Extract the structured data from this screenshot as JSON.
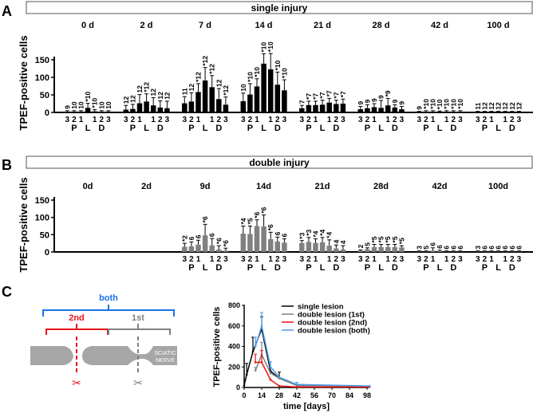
{
  "panels": {
    "A": {
      "label": "A",
      "title": "single injury"
    },
    "B": {
      "label": "B",
      "title": "double injury"
    },
    "C": {
      "label": "C"
    }
  },
  "ylabel": "TPEF-positive cells",
  "segment_numbers": [
    "3",
    "2",
    "1",
    "",
    "1",
    "2",
    "3"
  ],
  "segment_letters": {
    "P": "P",
    "L": "L",
    "D": "D"
  },
  "diagram": {
    "both": "both",
    "second": "2nd",
    "first": "1st",
    "nerve_line1": "SCIATIC",
    "nerve_line2": "NERVE",
    "colors": {
      "both": "#1a73e8",
      "second": "#e8141b",
      "first": "#808080",
      "nerve": "#a6a6a6"
    }
  },
  "chart_data": [
    {
      "type": "bar",
      "title": "single injury",
      "ylabel": "TPEF-positive cells",
      "ylim": [
        0,
        150
      ],
      "yticks": [
        0,
        50,
        100,
        150
      ],
      "color": "#000000",
      "groups": [
        {
          "day": "0 d",
          "values": [
            2,
            2,
            2,
            13,
            3,
            2,
            2
          ],
          "err_top": [
            5,
            5,
            5,
            26,
            8,
            5,
            5
          ],
          "n": [
            "9",
            "10",
            "10",
            "*10",
            "*10",
            "10",
            "10"
          ]
        },
        {
          "day": "2 d",
          "values": [
            8,
            10,
            26,
            31,
            20,
            14,
            12
          ],
          "err_top": [
            20,
            23,
            51,
            53,
            42,
            33,
            32
          ],
          "n": [
            "12",
            "12",
            "12",
            "*12",
            "12",
            "12",
            "12"
          ]
        },
        {
          "day": "7 d",
          "values": [
            26,
            31,
            58,
            91,
            72,
            38,
            22
          ],
          "err_top": [
            45,
            56,
            82,
            128,
            105,
            68,
            44
          ],
          "n": [
            "11",
            "12",
            "*12",
            "*12",
            "*12",
            "12",
            "*12"
          ]
        },
        {
          "day": "14 d",
          "values": [
            32,
            51,
            74,
            139,
            123,
            79,
            63
          ],
          "err_top": [
            55,
            82,
            96,
            167,
            168,
            115,
            93
          ],
          "n": [
            "10",
            "*10",
            "*10",
            "*10",
            "*10",
            "*10",
            "*10"
          ]
        },
        {
          "day": "21 d",
          "values": [
            12,
            21,
            21,
            22,
            28,
            24,
            25
          ],
          "err_top": [
            20,
            32,
            32,
            35,
            40,
            35,
            38
          ],
          "n": [
            "7",
            "*7",
            "*7",
            "*7",
            "*7",
            "*7",
            "*7"
          ]
        },
        {
          "day": "28 d",
          "values": [
            9,
            12,
            15,
            13,
            20,
            14,
            9
          ],
          "err_top": [
            17,
            22,
            25,
            34,
            40,
            22,
            17
          ],
          "n": [
            "9",
            "9",
            "9",
            "9",
            "*9",
            "9",
            "9"
          ]
        },
        {
          "day": "42 d",
          "values": [
            1,
            2,
            2,
            1,
            2,
            2,
            2
          ],
          "err_top": [
            3,
            5,
            5,
            4,
            5,
            5,
            5
          ],
          "n": [
            "9",
            "*10",
            "*10",
            "*10",
            "*10",
            "*10",
            "*10"
          ]
        },
        {
          "day": "100 d",
          "values": [
            1,
            1,
            1,
            1,
            1,
            1,
            1
          ],
          "err_top": [
            3,
            3,
            3,
            3,
            3,
            3,
            3
          ],
          "n": [
            "11",
            "12",
            "12",
            "12",
            "12",
            "12",
            "12"
          ]
        }
      ]
    },
    {
      "type": "bar",
      "title": "double injury",
      "ylabel": "TPEF-positive cells",
      "ylim": [
        0,
        150
      ],
      "yticks": [
        0,
        50,
        100,
        150
      ],
      "color": "#808080",
      "groups": [
        {
          "day": "0d",
          "values": [],
          "err_top": [],
          "n": []
        },
        {
          "day": "2d",
          "values": [],
          "err_top": [],
          "n": []
        },
        {
          "day": "9d",
          "values": [
            15,
            16,
            21,
            48,
            19,
            7,
            4
          ],
          "err_top": [
            25,
            29,
            34,
            80,
            39,
            18,
            11
          ],
          "n": [
            "*2",
            "6",
            "6",
            "*6",
            "6",
            "*6",
            "*6"
          ]
        },
        {
          "day": "14d",
          "values": [
            53,
            52,
            75,
            74,
            37,
            30,
            27
          ],
          "err_top": [
            75,
            75,
            93,
            107,
            57,
            43,
            38
          ],
          "n": [
            "*4",
            "*5",
            "*6",
            "*6",
            "*6",
            "6",
            "6"
          ]
        },
        {
          "day": "21d",
          "values": [
            26,
            29,
            26,
            28,
            18,
            10,
            7
          ],
          "err_top": [
            33,
            42,
            38,
            42,
            35,
            20,
            18
          ],
          "n": [
            "*3",
            "*3",
            "*4",
            "*4",
            "*4",
            "4",
            "4"
          ]
        },
        {
          "day": "28d",
          "values": [
            4,
            8,
            14,
            14,
            14,
            14,
            13
          ],
          "err_top": [
            6,
            12,
            22,
            22,
            22,
            22,
            18
          ],
          "n": [
            "2",
            "5",
            "*5",
            "*5",
            "*5",
            "*5",
            "*5"
          ]
        },
        {
          "day": "42d",
          "values": [
            1,
            1,
            4,
            2,
            1,
            1,
            1
          ],
          "err_top": [
            3,
            3,
            12,
            5,
            3,
            3,
            3
          ],
          "n": [
            "3",
            "5",
            "6",
            "6",
            "6",
            "6",
            "6"
          ]
        },
        {
          "day": "100d",
          "values": [
            1,
            1,
            1,
            1,
            1,
            1,
            1
          ],
          "err_top": [
            3,
            3,
            3,
            3,
            3,
            3,
            3
          ],
          "n": [
            "3",
            "6",
            "6",
            "6",
            "6",
            "6",
            "6"
          ]
        }
      ]
    },
    {
      "type": "line",
      "xlabel": "time [days]",
      "ylabel": "TPEF-positive cells",
      "xlim": [
        0,
        100
      ],
      "ylim": [
        0,
        800
      ],
      "xticks": [
        0,
        14,
        28,
        42,
        56,
        70,
        84,
        98
      ],
      "yticks": [
        0,
        200,
        400,
        600,
        800
      ],
      "legend_position": "top-right",
      "series": [
        {
          "name": "single lesion",
          "color": "#000000",
          "x": [
            0,
            2,
            7,
            14,
            21,
            28,
            42,
            100
          ],
          "y": [
            20,
            125,
            350,
            570,
            160,
            90,
            20,
            10
          ],
          "err": [
            0,
            110,
            140,
            120,
            0,
            60,
            10,
            0
          ]
        },
        {
          "name": "double lesion (1st)",
          "color": "#808080",
          "x": [
            9,
            14,
            21,
            28,
            42,
            100
          ],
          "y": [
            165,
            320,
            140,
            90,
            20,
            10
          ],
          "err": [
            30,
            120,
            0,
            0,
            0,
            0
          ]
        },
        {
          "name": "double lesion (2nd)",
          "color": "#ee1111",
          "x": [
            9,
            14,
            21,
            28,
            42,
            100
          ],
          "y": [
            245,
            245,
            75,
            15,
            5,
            5
          ],
          "err": [
            80,
            115,
            0,
            0,
            0,
            0
          ]
        },
        {
          "name": "double lesion (both)",
          "color": "#4a9be8",
          "x": [
            9,
            14,
            21,
            28,
            42,
            100
          ],
          "y": [
            400,
            600,
            200,
            100,
            30,
            15
          ],
          "err": [
            90,
            130,
            50,
            0,
            20,
            0
          ]
        }
      ]
    }
  ]
}
